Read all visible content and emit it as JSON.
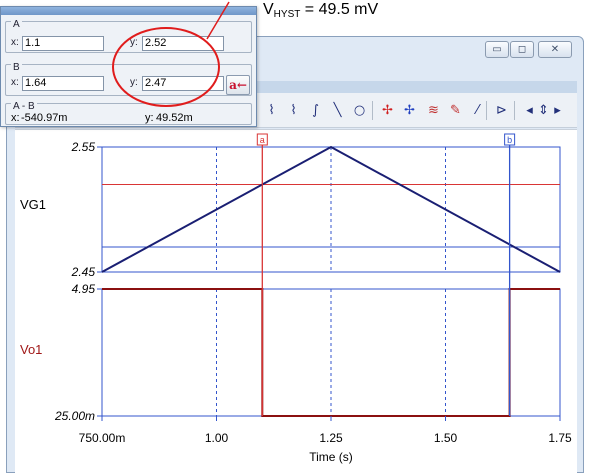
{
  "annotation": {
    "prefix": "V",
    "subscript": "HYST",
    "suffix": " = 49.5 mV"
  },
  "window_controls": {
    "minimize": "▭",
    "maximize": "◻",
    "close": "✕"
  },
  "cursor_dialog": {
    "a": {
      "label": "A",
      "x_label": "x:",
      "x_value": "1.1",
      "y_label": "y:",
      "y_value": "2.52"
    },
    "b": {
      "label": "B",
      "x_label": "x:",
      "x_value": "1.64",
      "y_label": "y:",
      "y_value": "2.47"
    },
    "ab": {
      "label": "A - B",
      "x_label": "x:",
      "x_value": "-540.97m",
      "y_label": "y:",
      "y_value": "49.52m"
    },
    "a_arrow_button": "a←"
  },
  "toolbar": {
    "icons": [
      "curve-fit-icon",
      "curve-fit-alt-icon",
      "function-icon",
      "line-icon",
      "circle-icon",
      "cursor-a-icon",
      "cursor-b-icon",
      "add-curve-icon",
      "probe-icon",
      "edit-icon",
      "flag-icon",
      "arrow-left-icon",
      "arrow-updown-icon",
      "arrow-right-icon"
    ],
    "glyphs": [
      "⌇",
      "⌇",
      "∫",
      "╲",
      "○",
      "✢",
      "✢",
      "≋",
      "✎",
      "⁄",
      "⊳",
      "◂",
      "⇕",
      "▸"
    ]
  },
  "chart_data": {
    "type": "line",
    "x": [
      0.75,
      1.25,
      1.75
    ],
    "xlabel": "Time (s)",
    "xlim": [
      0.75,
      1.75
    ],
    "x_ticks": [
      0.75,
      1.0,
      1.25,
      1.5,
      1.75
    ],
    "x_tick_labels": [
      "750.00m",
      "1.00",
      "1.25",
      "1.50",
      "1.75"
    ],
    "grid": true,
    "cursors": {
      "a": {
        "label": "a",
        "x": 1.1,
        "color": "#d93535"
      },
      "b": {
        "label": "b",
        "x": 1.64,
        "color": "#3355cc"
      }
    },
    "panels": [
      {
        "name": "VG1",
        "ylim": [
          2.45,
          2.55
        ],
        "y_tick_labels": [
          "2.55",
          "2.45"
        ],
        "color": "#1a1f73",
        "series": [
          {
            "name": "VG1",
            "x": [
              0.75,
              1.25,
              1.75
            ],
            "y": [
              2.45,
              2.55,
              2.45
            ]
          }
        ],
        "reference_lines": [
          {
            "y": 2.52,
            "color": "#d93535"
          },
          {
            "y": 2.47,
            "color": "#3355cc"
          }
        ]
      },
      {
        "name": "Vo1",
        "ylim": [
          0.025,
          4.95
        ],
        "y_tick_labels": [
          "4.95",
          "25.00m"
        ],
        "color": "#8b1010",
        "series": [
          {
            "name": "Vo1",
            "x": [
              0.75,
              1.1,
              1.1,
              1.64,
              1.64,
              1.75
            ],
            "y": [
              4.95,
              4.95,
              0.025,
              0.025,
              4.95,
              4.95
            ]
          }
        ]
      }
    ]
  }
}
